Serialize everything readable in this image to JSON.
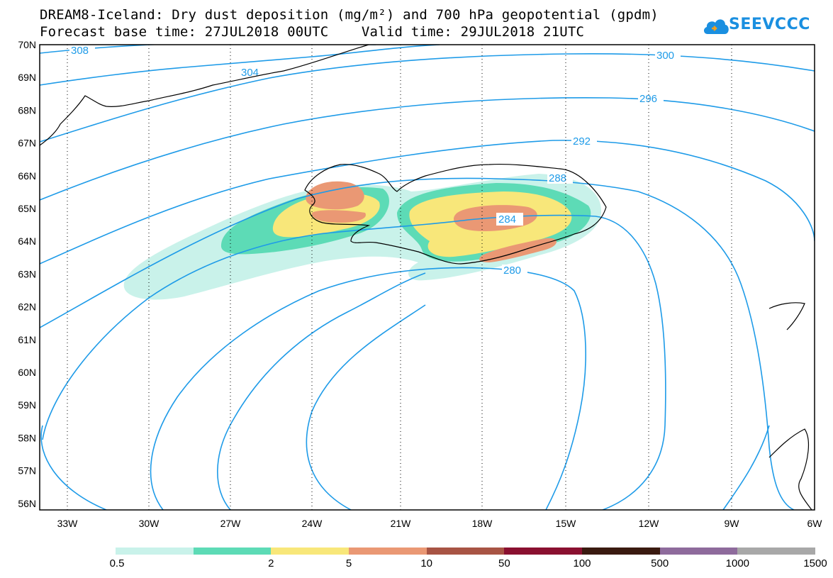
{
  "title": {
    "line1": "DREAM8-Iceland: Dry dust deposition (mg/m²) and 700 hPa geopotential (gpdm)",
    "line2": "Forecast base time: 27JUL2018 00UTC    Valid time: 29JUL2018 21UTC"
  },
  "logo": {
    "text": "SEEVCCC"
  },
  "map": {
    "lat_labels": [
      "70N",
      "69N",
      "68N",
      "67N",
      "66N",
      "65N",
      "64N",
      "63N",
      "62N",
      "61N",
      "60N",
      "59N",
      "58N",
      "57N",
      "56N"
    ],
    "lon_labels": [
      "33W",
      "30W",
      "27W",
      "24W",
      "21W",
      "18W",
      "15W",
      "12W",
      "9W",
      "6W"
    ],
    "contour_labels": [
      "308",
      "304",
      "300",
      "296",
      "292",
      "288",
      "284",
      "280"
    ],
    "contour_color": "#1e9be8",
    "coast_color": "#000000"
  },
  "colorbar": {
    "labels": [
      "0.5",
      "2",
      "5",
      "10",
      "50",
      "100",
      "500",
      "1000",
      "1500"
    ],
    "colors": [
      "#c9f2ea",
      "#5ddbb6",
      "#f8e77a",
      "#ea9874",
      "#a85444",
      "#8a1030",
      "#3a1a10",
      "#8e6b9c",
      "#a8a8a8"
    ]
  }
}
